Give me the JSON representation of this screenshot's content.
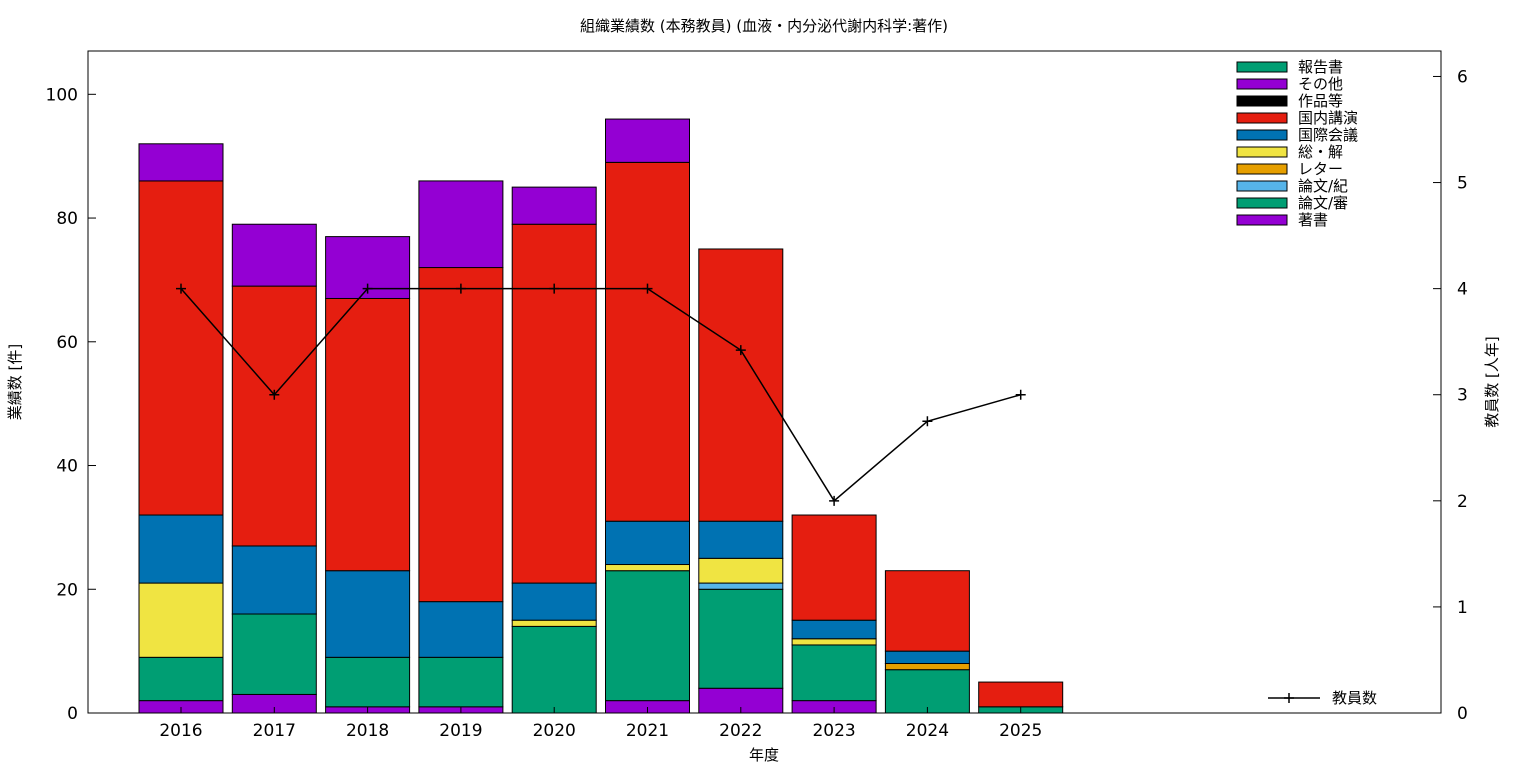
{
  "chart_data": {
    "type": "bar",
    "title": "組織業績数 (本務教員) (血液・内分泌代謝内科学:著作)",
    "xlabel": "年度",
    "ylabel": "業績数 [件]",
    "y2label": "教員数 [人年]",
    "ylim": [
      0,
      107
    ],
    "y2lim": [
      0,
      6.24
    ],
    "yticks": [
      0,
      20,
      40,
      60,
      80,
      100
    ],
    "y2ticks": [
      0,
      1,
      2,
      3,
      4,
      5,
      6
    ],
    "categories": [
      "2016",
      "2017",
      "2018",
      "2019",
      "2020",
      "2021",
      "2022",
      "2023",
      "2024",
      "2025"
    ],
    "series": [
      {
        "name": "著書",
        "color": "#9400d3",
        "values": [
          2,
          3,
          1,
          1,
          0,
          2,
          4,
          2,
          0,
          0
        ]
      },
      {
        "name": "論文/審",
        "color": "#009e73",
        "values": [
          7,
          13,
          8,
          8,
          14,
          21,
          16,
          9,
          7,
          1
        ]
      },
      {
        "name": "論文/紀",
        "color": "#56b4e9",
        "values": [
          0,
          0,
          0,
          0,
          0,
          0,
          1,
          0,
          0,
          0
        ]
      },
      {
        "name": "レター",
        "color": "#e69f00",
        "values": [
          0,
          0,
          0,
          0,
          0,
          0,
          0,
          0,
          1,
          0
        ]
      },
      {
        "name": "総・解",
        "color": "#f0e442",
        "values": [
          12,
          0,
          0,
          0,
          1,
          1,
          4,
          1,
          0,
          0
        ]
      },
      {
        "name": "国際会議",
        "color": "#0072b2",
        "values": [
          11,
          11,
          14,
          9,
          6,
          7,
          6,
          3,
          2,
          0
        ]
      },
      {
        "name": "国内講演",
        "color": "#e51e10",
        "values": [
          54,
          42,
          44,
          54,
          58,
          58,
          44,
          17,
          13,
          4
        ]
      },
      {
        "name": "作品等",
        "color": "#000000",
        "values": [
          0,
          0,
          0,
          0,
          0,
          0,
          0,
          0,
          0,
          0
        ]
      },
      {
        "name": "その他",
        "color": "#9400d3",
        "values": [
          6,
          10,
          10,
          14,
          6,
          7,
          0,
          0,
          0,
          0
        ]
      },
      {
        "name": "報告書",
        "color": "#009e73",
        "values": [
          0,
          0,
          0,
          0,
          0,
          0,
          0,
          0,
          0,
          0
        ]
      }
    ],
    "line_series": {
      "name": "教員数",
      "color": "#000000",
      "values": [
        4,
        3,
        4,
        4,
        4,
        4,
        3.42,
        2,
        2.75,
        3
      ]
    },
    "legend_position": "top-right",
    "grid": false
  }
}
